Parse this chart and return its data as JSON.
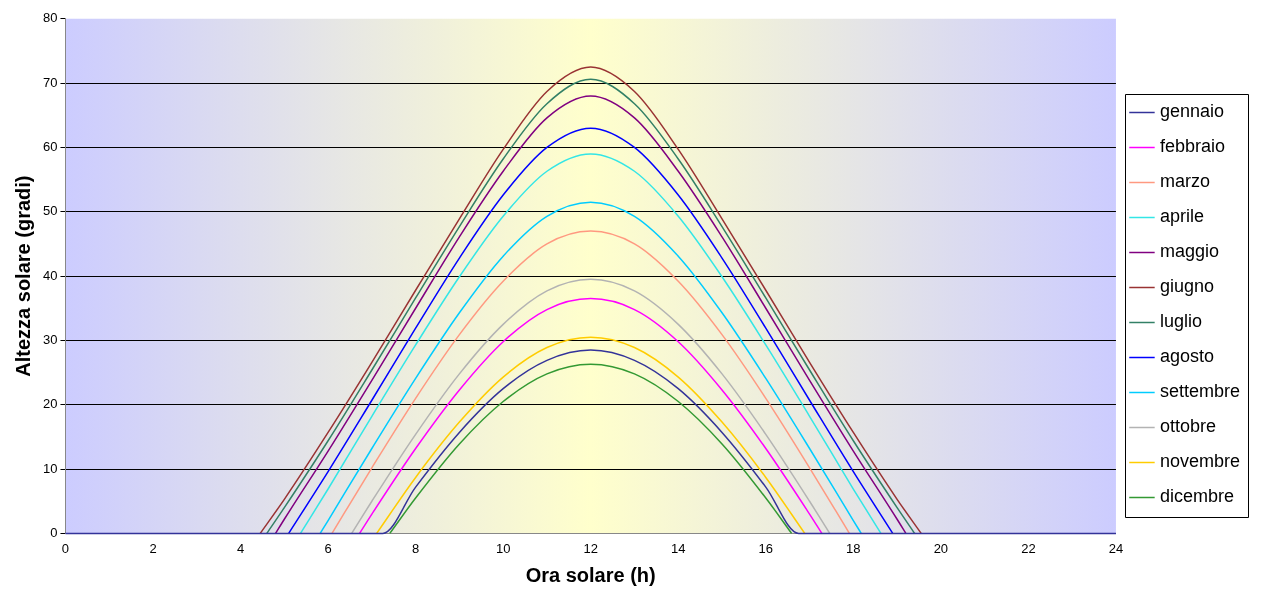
{
  "chart_data": {
    "type": "line",
    "xlabel": "Ora solare (h)",
    "ylabel": "Altezza solare (gradi)",
    "xlim": [
      0,
      24
    ],
    "xticks": [
      0,
      2,
      4,
      6,
      8,
      10,
      12,
      14,
      16,
      18,
      20,
      22,
      24
    ],
    "ylim": [
      0,
      80
    ],
    "yticks": [
      0,
      10,
      20,
      30,
      40,
      50,
      60,
      70,
      80
    ],
    "grid": "y",
    "legend": "right",
    "marker": "none",
    "line_style": "solid",
    "series": [
      {
        "name": "gennaio",
        "color": "#333399",
        "x": [
          0,
          7.25,
          8,
          9,
          10,
          11,
          12,
          13,
          14,
          15,
          16,
          16.75,
          24
        ],
        "values": [
          0,
          0,
          7.2,
          15.7,
          22.5,
          26.9,
          28.5,
          26.9,
          22.5,
          15.7,
          7.2,
          0,
          0
        ]
      },
      {
        "name": "febbraio",
        "color": "#ff00ff",
        "x": [
          6.72,
          7,
          8,
          9,
          10,
          11,
          12,
          13,
          14,
          15,
          16,
          17,
          17.28
        ],
        "values": [
          0,
          3,
          13.2,
          22.3,
          29.8,
          34.8,
          36.5,
          34.8,
          29.8,
          22.3,
          13.2,
          3,
          0
        ]
      },
      {
        "name": "marzo",
        "color": "#ff9980",
        "x": [
          6.09,
          7,
          8,
          9,
          10,
          11,
          12,
          13,
          14,
          15,
          16,
          17,
          17.91
        ],
        "values": [
          0,
          10.2,
          21,
          30.9,
          39.2,
          45,
          47,
          45,
          39.2,
          30.9,
          21,
          10.2,
          0
        ]
      },
      {
        "name": "aprile",
        "color": "#33e6e6",
        "x": [
          5.37,
          6,
          7,
          8,
          9,
          10,
          11,
          12,
          13,
          14,
          15,
          16,
          17,
          18,
          18.63
        ],
        "values": [
          0,
          6.9,
          18.2,
          29.3,
          39.9,
          49.3,
          56.3,
          59,
          56.3,
          49.3,
          39.9,
          29.3,
          18.2,
          6.9,
          0
        ]
      },
      {
        "name": "maggio",
        "color": "#800080",
        "x": [
          4.8,
          5,
          6,
          7,
          8,
          9,
          10,
          11,
          12,
          13,
          14,
          15,
          16,
          17,
          18,
          19,
          19.2
        ],
        "values": [
          0,
          2.2,
          12.8,
          23.8,
          35,
          46.1,
          56.3,
          64.6,
          68,
          64.6,
          56.3,
          46.1,
          35,
          23.8,
          12.8,
          2.2,
          0
        ]
      },
      {
        "name": "giugno",
        "color": "#993333",
        "x": [
          4.45,
          5,
          6,
          7,
          8,
          9,
          10,
          11,
          12,
          13,
          14,
          15,
          16,
          17,
          18,
          19,
          19.55
        ],
        "values": [
          0,
          5.3,
          15.7,
          26.6,
          37.8,
          48.9,
          59.7,
          68.7,
          72.5,
          68.7,
          59.7,
          48.9,
          37.8,
          26.6,
          15.7,
          5.3,
          0
        ]
      },
      {
        "name": "luglio",
        "color": "#338066",
        "x": [
          4.6,
          5,
          6,
          7,
          8,
          9,
          10,
          11,
          12,
          13,
          14,
          15,
          16,
          17,
          18,
          19,
          19.4
        ],
        "values": [
          0,
          4,
          14.4,
          25.4,
          36.6,
          47.7,
          58.2,
          66.8,
          70.6,
          66.8,
          58.2,
          47.7,
          36.6,
          25.4,
          14.4,
          4,
          0
        ]
      },
      {
        "name": "agosto",
        "color": "#0000ff",
        "x": [
          5.1,
          6,
          7,
          8,
          9,
          10,
          11,
          12,
          13,
          14,
          15,
          16,
          17,
          18,
          18.9
        ],
        "values": [
          0,
          9.6,
          20.7,
          31.9,
          42.8,
          52.6,
          60,
          63,
          60,
          52.6,
          42.8,
          31.9,
          20.7,
          9.6,
          0
        ]
      },
      {
        "name": "settembre",
        "color": "#00ccff",
        "x": [
          5.82,
          6,
          7,
          8,
          9,
          10,
          11,
          12,
          13,
          14,
          15,
          16,
          17,
          18,
          18.18
        ],
        "values": [
          0,
          2,
          13.2,
          24.1,
          34.3,
          43.1,
          49.3,
          51.5,
          49.3,
          43.1,
          34.3,
          24.1,
          13.2,
          2,
          0
        ]
      },
      {
        "name": "ottobre",
        "color": "#b3b3b3",
        "x": [
          6.54,
          7,
          8,
          9,
          10,
          11,
          12,
          13,
          14,
          15,
          16,
          17,
          17.46
        ],
        "values": [
          0,
          5,
          15.4,
          24.8,
          32.5,
          37.7,
          39.5,
          37.7,
          32.5,
          24.8,
          15.4,
          5,
          0
        ]
      },
      {
        "name": "novembre",
        "color": "#ffcc00",
        "x": [
          7.11,
          8,
          9,
          10,
          11,
          12,
          13,
          14,
          15,
          16,
          16.89
        ],
        "values": [
          0,
          8.7,
          17.3,
          24.3,
          28.9,
          30.5,
          28.9,
          24.3,
          17.3,
          8.7,
          0
        ]
      },
      {
        "name": "dicembre",
        "color": "#339933",
        "x": [
          7.41,
          8,
          9,
          10,
          11,
          12,
          13,
          14,
          15,
          16,
          16.59
        ],
        "values": [
          0,
          5.5,
          13.9,
          20.5,
          24.8,
          26.3,
          24.8,
          20.5,
          13.9,
          5.5,
          0
        ]
      }
    ]
  }
}
